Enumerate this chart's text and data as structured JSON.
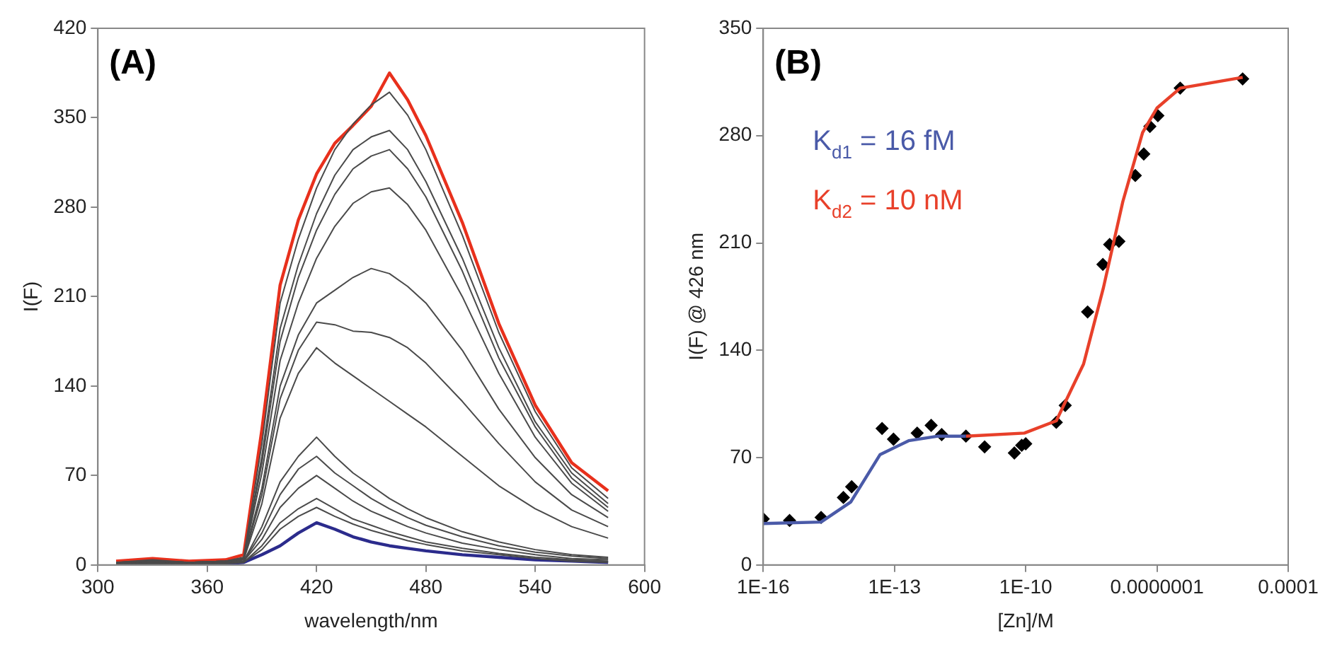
{
  "chart_data": [
    {
      "type": "line",
      "title": "(A)",
      "xlabel": "wavelength/nm",
      "ylabel": "I(F)",
      "x": [
        310,
        330,
        350,
        370,
        380,
        390,
        400,
        410,
        420,
        430,
        440,
        450,
        460,
        470,
        480,
        500,
        520,
        540,
        560,
        580
      ],
      "series": [
        {
          "color": "#4a4a4a",
          "values": [
            2,
            4,
            2,
            3,
            6,
            95,
            205,
            255,
            295,
            325,
            345,
            360,
            370,
            352,
            325,
            258,
            182,
            120,
            76,
            52
          ]
        },
        {
          "color": "#4a4a4a",
          "values": [
            2,
            3,
            2,
            3,
            5,
            85,
            185,
            235,
            275,
            305,
            325,
            335,
            340,
            325,
            300,
            240,
            170,
            112,
            72,
            48
          ]
        },
        {
          "color": "#4a4a4a",
          "values": [
            2,
            3,
            2,
            3,
            5,
            80,
            175,
            225,
            262,
            290,
            310,
            320,
            325,
            310,
            288,
            230,
            162,
            108,
            68,
            45
          ]
        },
        {
          "color": "#4a4a4a",
          "values": [
            2,
            3,
            2,
            3,
            5,
            72,
            160,
            205,
            240,
            265,
            283,
            292,
            295,
            282,
            262,
            210,
            150,
            100,
            64,
            42
          ]
        },
        {
          "color": "#4a4a4a",
          "values": [
            2,
            3,
            2,
            3,
            5,
            60,
            140,
            180,
            205,
            215,
            225,
            232,
            228,
            218,
            205,
            168,
            122,
            84,
            55,
            37
          ]
        },
        {
          "color": "#4a4a4a",
          "values": [
            2,
            3,
            2,
            3,
            5,
            55,
            130,
            168,
            190,
            188,
            183,
            182,
            178,
            170,
            158,
            128,
            95,
            65,
            43,
            30
          ]
        },
        {
          "color": "#4a4a4a",
          "values": [
            1,
            2,
            1,
            2,
            4,
            48,
            115,
            150,
            170,
            158,
            148,
            138,
            128,
            118,
            108,
            85,
            62,
            44,
            30,
            21
          ]
        },
        {
          "color": "#4a4a4a",
          "values": [
            1,
            2,
            1,
            2,
            3,
            30,
            65,
            85,
            100,
            85,
            72,
            62,
            52,
            44,
            37,
            26,
            18,
            12,
            8,
            6
          ]
        },
        {
          "color": "#4a4a4a",
          "values": [
            1,
            2,
            1,
            2,
            3,
            25,
            55,
            75,
            85,
            72,
            62,
            52,
            44,
            37,
            31,
            22,
            15,
            10,
            7,
            5
          ]
        },
        {
          "color": "#4a4a4a",
          "values": [
            1,
            2,
            1,
            2,
            3,
            20,
            45,
            60,
            70,
            60,
            50,
            42,
            36,
            30,
            25,
            17,
            12,
            8,
            5,
            4
          ]
        },
        {
          "color": "#4a4a4a",
          "values": [
            1,
            2,
            1,
            2,
            2,
            15,
            33,
            44,
            52,
            44,
            36,
            31,
            26,
            22,
            18,
            13,
            9,
            6,
            4,
            3
          ]
        },
        {
          "color": "#4a4a4a",
          "values": [
            1,
            1,
            1,
            1,
            2,
            12,
            28,
            38,
            45,
            38,
            32,
            27,
            23,
            19,
            16,
            11,
            8,
            5,
            3,
            2
          ]
        },
        {
          "color": "#2b2b8c",
          "values": [
            null,
            null,
            null,
            1,
            2,
            8,
            15,
            25,
            33,
            28,
            22,
            18,
            15,
            13,
            11,
            8,
            6,
            4,
            3,
            2
          ]
        },
        {
          "color": "#e8301c",
          "values": [
            3,
            5,
            3,
            4,
            8,
            106,
            219,
            270,
            306,
            330,
            344,
            359,
            385,
            364,
            336,
            268,
            189,
            125,
            80,
            58
          ]
        }
      ],
      "xlim": [
        300,
        600
      ],
      "xticks": [
        300,
        360,
        420,
        480,
        540,
        600
      ],
      "ylim": [
        0,
        420
      ],
      "yticks": [
        0,
        70,
        140,
        210,
        280,
        350,
        420
      ],
      "marker": "none"
    },
    {
      "type": "scatter",
      "title": "(B)",
      "xlabel": "[Zn]/M",
      "ylabel": "I(F) @ 426 nm",
      "log": "x",
      "annotations": [
        "K$_{d1}$ = 16 fM",
        "K$_{d2}$ = 10 nM"
      ],
      "series": [
        {
          "type": "line",
          "color": "#4a5aa8",
          "marker": "none",
          "x": [
            1e-16,
            2.1e-15,
            1e-14,
            4.7e-14,
            2.1e-13,
            1e-12,
            4.3e-12
          ],
          "values": [
            27,
            28,
            41,
            72,
            81,
            84,
            84
          ]
        },
        {
          "type": "line",
          "color": "#e8402a",
          "marker": "none",
          "x": [
            4.3e-12,
            9.3e-11,
            5e-10,
            2.1e-09,
            6e-09,
            1.66e-08,
            4.7e-08,
            1e-07,
            3.4e-07,
            9.1e-06
          ],
          "values": [
            84,
            86,
            94,
            131,
            181,
            237,
            282,
            298,
            311,
            318
          ]
        },
        {
          "color": "#000000",
          "marker": "diamond",
          "x": [
            1e-16,
            4e-16,
            2.1e-15,
            6.8e-15,
            1.05e-14,
            5.2e-14,
            9.5e-14,
            3.3e-13,
            6.9e-13,
            1.2e-12,
            4.3e-12,
            1.15e-11,
            5.5e-11,
            8.1e-11,
            1e-10,
            5e-10,
            8e-10,
            2.6e-09,
            5.8e-09,
            8.3e-09,
            1.35e-08,
            3.2e-08,
            5e-08,
            6.9e-08,
            1.05e-07,
            3.4e-07,
            9.1e-06
          ],
          "values": [
            30,
            29,
            31,
            44,
            51,
            89,
            82,
            86,
            91,
            85,
            84,
            77,
            73,
            78,
            79,
            93,
            104,
            165,
            196,
            209,
            211,
            254,
            268,
            286,
            293,
            311,
            317
          ]
        }
      ],
      "xlim": [
        1e-16,
        0.0001
      ],
      "xticks": [
        {
          "value": 1e-16,
          "label": "1E-16"
        },
        {
          "value": 1e-13,
          "label": "1E-13"
        },
        {
          "value": 1e-10,
          "label": "1E-10"
        },
        {
          "value": 1e-07,
          "label": "0.0000001"
        },
        {
          "value": 0.0001,
          "label": "0.0001"
        }
      ],
      "ylim": [
        0,
        350
      ],
      "yticks": [
        0,
        70,
        140,
        210,
        280,
        350
      ]
    }
  ]
}
